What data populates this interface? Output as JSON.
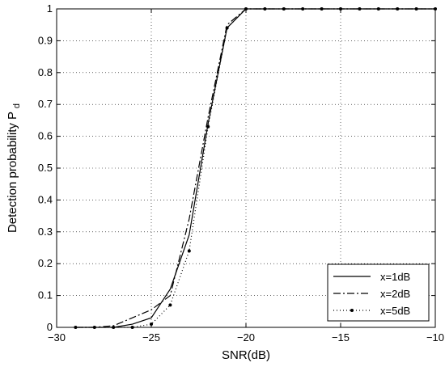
{
  "chart_data": {
    "type": "line",
    "title": "",
    "xlabel": "SNR(dB)",
    "ylabel": "Detection probability P",
    "ylabel_subscript": "d",
    "xlim": [
      -30,
      -10
    ],
    "ylim": [
      0,
      1
    ],
    "xticks": [
      -30,
      -25,
      -20,
      -15,
      -10
    ],
    "yticks": [
      0,
      0.1,
      0.2,
      0.3,
      0.4,
      0.5,
      0.6,
      0.7,
      0.8,
      0.9,
      1
    ],
    "xtick_labels": [
      "−30",
      "−25",
      "−20",
      "−15",
      "−10"
    ],
    "ytick_labels": [
      "0",
      "0.1",
      "0.2",
      "0.3",
      "0.4",
      "0.5",
      "0.6",
      "0.7",
      "0.8",
      "0.9",
      "1"
    ],
    "grid": true,
    "legend_position": "bottom-right",
    "series": [
      {
        "name": "x=1dB",
        "style": "solid",
        "marker": "none",
        "x": [
          -29,
          -28,
          -27,
          -26,
          -25,
          -24,
          -23,
          -22,
          -21,
          -20,
          -19,
          -18,
          -17,
          -16,
          -15,
          -14,
          -13,
          -12,
          -11,
          -10
        ],
        "y": [
          0,
          0,
          0,
          0.01,
          0.03,
          0.12,
          0.29,
          0.64,
          0.94,
          1,
          1,
          1,
          1,
          1,
          1,
          1,
          1,
          1,
          1,
          1
        ]
      },
      {
        "name": "x=2dB",
        "style": "dashdot",
        "marker": "none",
        "x": [
          -29,
          -28,
          -27,
          -26,
          -25,
          -24,
          -23,
          -22,
          -21,
          -20,
          -19,
          -18,
          -17,
          -16,
          -15,
          -14,
          -13,
          -12,
          -11,
          -10
        ],
        "y": [
          0,
          0,
          0.005,
          0.03,
          0.055,
          0.1,
          0.34,
          0.66,
          0.95,
          1,
          1,
          1,
          1,
          1,
          1,
          1,
          1,
          1,
          1,
          1
        ]
      },
      {
        "name": "x=5dB",
        "style": "dotted",
        "marker": "dot",
        "x": [
          -29,
          -28,
          -27,
          -26,
          -25,
          -24,
          -23,
          -22,
          -21,
          -20,
          -19,
          -18,
          -17,
          -16,
          -15,
          -14,
          -13,
          -12,
          -11,
          -10
        ],
        "y": [
          0,
          0,
          0,
          0,
          0.01,
          0.07,
          0.24,
          0.63,
          0.94,
          1,
          1,
          1,
          1,
          1,
          1,
          1,
          1,
          1,
          1,
          1
        ]
      }
    ]
  }
}
